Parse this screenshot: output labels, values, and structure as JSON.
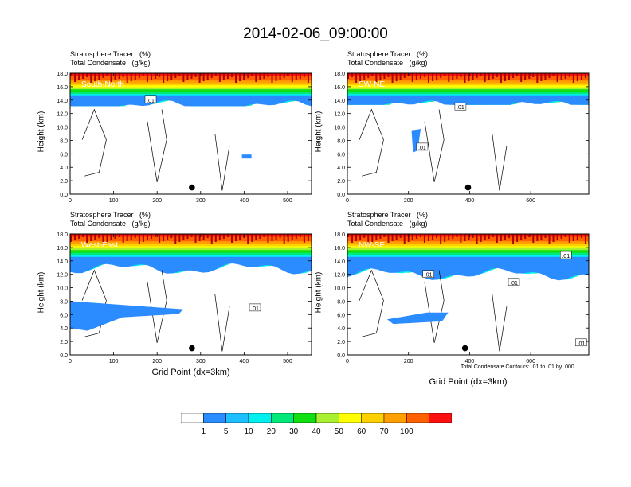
{
  "title": "2014-02-06_09:00:00",
  "panel_titles": {
    "line1": "Stratosphere Tracer   (%)",
    "line2": "Total Condensate   (g/kg)"
  },
  "y_axis_label": "Height (km)",
  "x_axis_label": "Grid Point (dx=3km)",
  "contour_note": "Total Condensate Contours: .01 to .01 by .000",
  "contour_label": ".01",
  "colorbar": {
    "labels": [
      "1",
      "5",
      "10",
      "20",
      "30",
      "40",
      "50",
      "60",
      "70",
      "100"
    ],
    "colors": [
      "#ffffff",
      "#2b8cff",
      "#1ebfff",
      "#00f0f0",
      "#00e87a",
      "#10e010",
      "#a8f030",
      "#ffff00",
      "#ffd000",
      "#ffa000",
      "#ff6000",
      "#ff1010"
    ]
  },
  "chart_data": [
    {
      "type": "heatmap",
      "name": "South-North",
      "title": "Stratosphere Tracer (%) / Total Condensate (g/kg)",
      "ylabel": "Height (km)",
      "xlim": [
        0,
        555
      ],
      "ylim": [
        0,
        18
      ],
      "xticks": [
        0,
        100,
        200,
        300,
        400,
        500
      ],
      "yticks": [
        "0.0",
        "2.0",
        "4.0",
        "6.0",
        "8.0",
        "10.0",
        "12.0",
        "14.0",
        "16.0",
        "18.0"
      ],
      "tracer_base_km": 14.6,
      "marker": {
        "x": 280,
        "y": 1.0
      },
      "contour_labels": [
        {
          "x": 185,
          "y": 14.0,
          "text": ".01"
        }
      ]
    },
    {
      "type": "heatmap",
      "name": "SW-NE",
      "title": "Stratosphere Tracer (%) / Total Condensate (g/kg)",
      "ylabel": "Height (km)",
      "xlim": [
        0,
        790
      ],
      "ylim": [
        0,
        18
      ],
      "xticks": [
        0,
        200,
        400,
        600
      ],
      "yticks": [
        "0.0",
        "2.0",
        "4.0",
        "6.0",
        "8.0",
        "10.0",
        "12.0",
        "14.0",
        "16.0",
        "18.0"
      ],
      "tracer_base_km": 14.8,
      "marker": {
        "x": 395,
        "y": 1.0
      },
      "contour_labels": [
        {
          "x": 245,
          "y": 7.0,
          "text": ".01"
        },
        {
          "x": 370,
          "y": 13.0,
          "text": ".01"
        }
      ]
    },
    {
      "type": "heatmap",
      "name": "West-East",
      "title": "Stratosphere Tracer (%) / Total Condensate (g/kg)",
      "ylabel": "Height (km)",
      "xlabel": "Grid Point (dx=3km)",
      "xlim": [
        0,
        555
      ],
      "ylim": [
        0,
        18
      ],
      "xticks": [
        0,
        100,
        200,
        300,
        400,
        500
      ],
      "yticks": [
        "0.0",
        "2.0",
        "4.0",
        "6.0",
        "8.0",
        "10.0",
        "12.0",
        "14.0",
        "16.0",
        "18.0"
      ],
      "tracer_base_km": 13.5,
      "marker": {
        "x": 280,
        "y": 1.0
      },
      "contour_labels": [
        {
          "x": 425,
          "y": 7.0,
          "text": ".01"
        }
      ]
    },
    {
      "type": "heatmap",
      "name": "NW-SE",
      "title": "Stratosphere Tracer (%) / Total Condensate (g/kg)",
      "ylabel": "Height (km)",
      "xlabel": "Grid Point (dx=3km)",
      "xlim": [
        0,
        790
      ],
      "ylim": [
        0,
        18
      ],
      "xticks": [
        0,
        200,
        400,
        600
      ],
      "yticks": [
        "0.0",
        "2.0",
        "4.0",
        "6.0",
        "8.0",
        "10.0",
        "12.0",
        "14.0",
        "16.0",
        "18.0"
      ],
      "tracer_base_km": 12.0,
      "marker": {
        "x": 385,
        "y": 1.0
      },
      "contour_labels": [
        {
          "x": 265,
          "y": 12.0,
          "text": ".01"
        },
        {
          "x": 545,
          "y": 10.8,
          "text": ".01"
        },
        {
          "x": 715,
          "y": 14.8,
          "text": ".01"
        },
        {
          "x": 765,
          "y": 1.8,
          "text": ".01"
        }
      ]
    }
  ]
}
